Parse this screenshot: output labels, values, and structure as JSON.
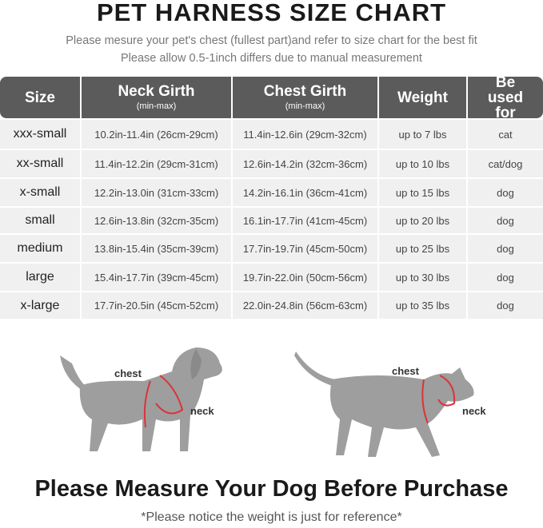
{
  "title": "PET HARNESS SIZE CHART",
  "subtitle_1": "Please mesure your pet's chest (fullest part)and refer to size chart for the best fit",
  "subtitle_2": "Please allow 0.5-1inch differs due to manual measurement",
  "table": {
    "headers": [
      {
        "label": "Size",
        "sub": ""
      },
      {
        "label": "Neck Girth",
        "sub": "(min-max)"
      },
      {
        "label": "Chest Girth",
        "sub": "(min-max)"
      },
      {
        "label": "Weight",
        "sub": ""
      },
      {
        "label": "Be used for",
        "sub": ""
      }
    ],
    "rows": [
      [
        "xxx-small",
        "10.2in-11.4in (26cm-29cm)",
        "11.4in-12.6in (29cm-32cm)",
        "up to 7 lbs",
        "cat"
      ],
      [
        "xx-small",
        "11.4in-12.2in (29cm-31cm)",
        "12.6in-14.2in (32cm-36cm)",
        "up to 10 lbs",
        "cat/dog"
      ],
      [
        "x-small",
        "12.2in-13.0in (31cm-33cm)",
        "14.2in-16.1in (36cm-41cm)",
        "up to 15 lbs",
        "dog"
      ],
      [
        "small",
        "12.6in-13.8in (32cm-35cm)",
        "16.1in-17.7in (41cm-45cm)",
        "up to 20 lbs",
        "dog"
      ],
      [
        "medium",
        "13.8in-15.4in (35cm-39cm)",
        "17.7in-19.7in (45cm-50cm)",
        "up to 25 lbs",
        "dog"
      ],
      [
        "large",
        "15.4in-17.7in (39cm-45cm)",
        "19.7in-22.0in (50cm-56cm)",
        "up to 30 lbs",
        "dog"
      ],
      [
        "x-large",
        "17.7in-20.5in (45cm-52cm)",
        "22.0in-24.8in (56cm-63cm)",
        "up to 35 lbs",
        "dog"
      ]
    ]
  },
  "dog_labels": {
    "chest": "chest",
    "neck": "neck"
  },
  "cat_labels": {
    "chest": "chest",
    "neck": "neck"
  },
  "bottom_text": "Please Measure Your Dog Before Purchase",
  "note": "*Please notice the weight is just for reference*",
  "colors": {
    "header_bg": "#5b5b5b",
    "row_bg": "#f0f0f0",
    "silhouette": "#9e9e9e",
    "harness": "#d9343a"
  }
}
